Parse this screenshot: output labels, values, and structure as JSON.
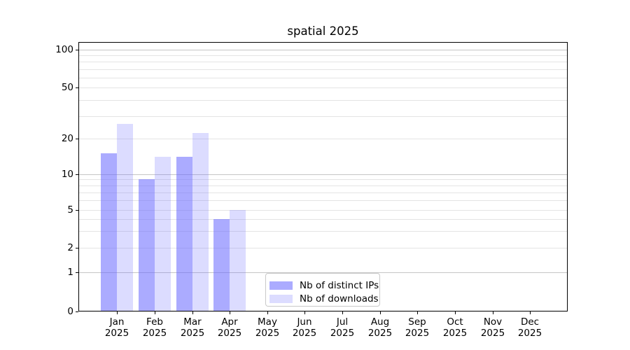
{
  "chart_data": {
    "type": "bar",
    "title": "spatial 2025",
    "categories": [
      "Jan",
      "Feb",
      "Mar",
      "Apr",
      "May",
      "Jun",
      "Jul",
      "Aug",
      "Sep",
      "Oct",
      "Nov",
      "Dec"
    ],
    "category_year": "2025",
    "series": [
      {
        "name": "Nb of distinct IPs",
        "color": "rgba(102,102,255,0.55)",
        "values": [
          15,
          9,
          14,
          4,
          0,
          0,
          0,
          0,
          0,
          0,
          0,
          0
        ]
      },
      {
        "name": "Nb of downloads",
        "color": "rgba(102,102,255,0.23)",
        "values": [
          26,
          14,
          22,
          5,
          0,
          0,
          0,
          0,
          0,
          0,
          0,
          0
        ]
      }
    ],
    "xlabel": "",
    "ylabel": "",
    "y_axis": {
      "scale": "symlog-like",
      "ticks": [
        0,
        1,
        2,
        5,
        10,
        20,
        50,
        100
      ],
      "minor_gridlines": [
        3,
        4,
        6,
        7,
        8,
        9,
        30,
        40,
        60,
        70,
        80,
        90
      ],
      "range": [
        0,
        110
      ]
    },
    "grid": "on",
    "legend": {
      "position": "lower center",
      "entries": [
        "Nb of distinct IPs",
        "Nb of downloads"
      ]
    },
    "colors": {
      "bar_dark": "rgba(102,102,255,0.55)",
      "bar_light": "rgba(102,102,255,0.23)",
      "grid_major": "#c6c6c6",
      "grid_minor": "#e4e4e4",
      "spine": "#000000"
    }
  }
}
